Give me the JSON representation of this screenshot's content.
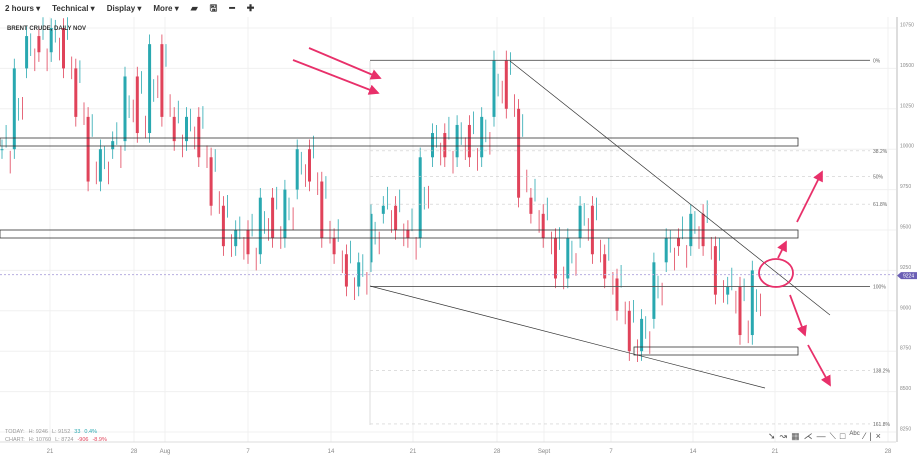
{
  "toolbar": {
    "interval": "2 hours ▾",
    "technical": "Technical ▾",
    "display": "Display ▾",
    "more": "More ▾"
  },
  "chart_title": "BRENT CRUDE, DAILY NOV",
  "stats": {
    "today_label": "TODAY:",
    "today_h": "H: 9246",
    "today_l": "L: 9152",
    "today_chg": "33",
    "today_pct": "0.4%",
    "chart_label": "CHART:",
    "chart_h": "H: 10760",
    "chart_l": "L: 8724",
    "chart_chg": "-906",
    "chart_pct": "-8.9%"
  },
  "colors": {
    "up": "#29a8b0",
    "down": "#e0435a",
    "annotation": "#e8306a",
    "price_tag": "#6b5fb5"
  },
  "drawing_tools": [
    "pointer-icon",
    "curve-icon",
    "grid-icon",
    "fan-icon",
    "hline-icon",
    "trendline-icon",
    "rectangle-icon",
    "text-icon",
    "pen-icon",
    "separator",
    "close-icon"
  ],
  "chart_data": {
    "type": "candlestick",
    "closes": [
      10000,
      10500,
      10700,
      10600,
      10750,
      10500,
      10200,
      9800,
      10000,
      10050,
      10450,
      10100,
      10650,
      10200,
      10050,
      10200,
      9950,
      9650,
      9400,
      9500,
      9350,
      9700,
      9450,
      9750,
      10000,
      9800,
      9450,
      9350,
      9150,
      9300,
      9600,
      9650,
      9500,
      9450,
      9950,
      10100,
      9950,
      10150,
      9950,
      10200,
      10550,
      10250,
      9700,
      9600,
      9450,
      9200,
      9450,
      9650,
      9350,
      9200,
      9000,
      8750,
      8950,
      9300,
      9450,
      9400,
      9600,
      9400,
      9100,
      9150,
      8850,
      9250
    ],
    "current_price": 9224,
    "y_ticks": [
      10750,
      10500,
      10250,
      10000,
      9750,
      9500,
      9250,
      9000,
      8750,
      8500,
      8250
    ],
    "ylim": [
      8200,
      10800
    ],
    "x_ticks": [
      "21",
      "28",
      "Aug",
      "7",
      "14",
      "21",
      "28",
      "Sept",
      "7",
      "14",
      "21",
      "28"
    ],
    "fib_levels": [
      {
        "label": "0%",
        "price": 10550
      },
      {
        "label": "38.2%",
        "price": 9990
      },
      {
        "label": "50%",
        "price": 9830
      },
      {
        "label": "61.8%",
        "price": 9660
      },
      {
        "label": "100%",
        "price": 9150
      },
      {
        "label": "138.2%",
        "price": 8630
      },
      {
        "label": "161.8%",
        "price": 8300
      }
    ]
  }
}
